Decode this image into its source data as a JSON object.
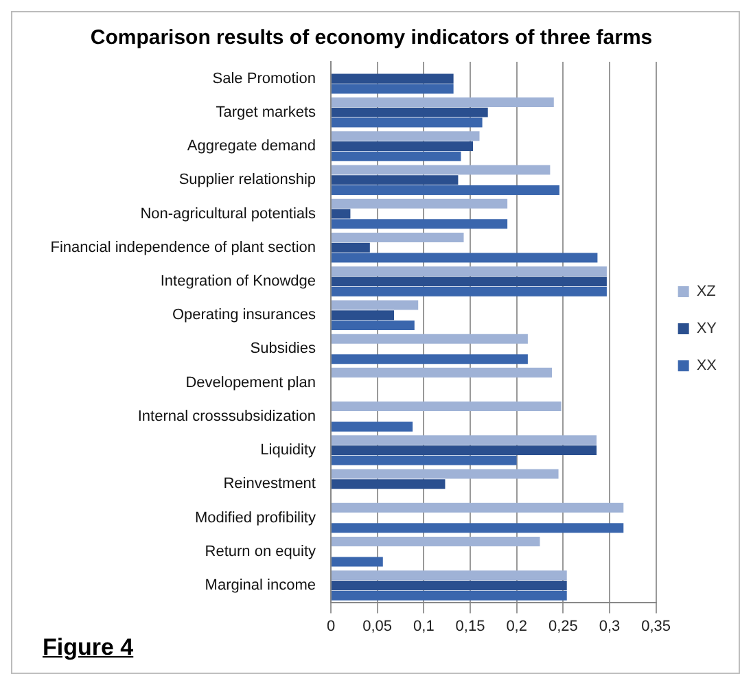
{
  "chart_data": {
    "type": "bar",
    "orientation": "horizontal",
    "title": "Comparison results of economy indicators of three farms",
    "categories": [
      "Sale Promotion",
      "Target markets",
      "Aggregate demand",
      "Supplier relationship",
      "Non-agricultural potentials",
      "Financial independence of plant section",
      "Integration of Knowdge",
      "Operating insurances",
      "Subsidies",
      "Developement plan",
      "Internal crosssubsidization",
      "Liquidity",
      "Reinvestment",
      "Modified profibility",
      "Return on equity",
      "Marginal income"
    ],
    "series": [
      {
        "name": "XZ",
        "color": "#9fb2d6",
        "values": [
          null,
          0.24,
          0.16,
          0.236,
          0.19,
          0.143,
          0.297,
          0.094,
          0.212,
          0.238,
          0.248,
          0.286,
          0.245,
          0.315,
          0.225,
          0.254
        ]
      },
      {
        "name": "XY",
        "color": "#2a4f8f",
        "values": [
          0.132,
          0.169,
          0.153,
          0.137,
          0.021,
          0.042,
          0.297,
          0.068,
          null,
          null,
          null,
          0.286,
          0.123,
          null,
          null,
          0.254
        ]
      },
      {
        "name": "XX",
        "color": "#3a66ad",
        "values": [
          0.132,
          0.163,
          0.14,
          0.246,
          0.19,
          0.287,
          0.297,
          0.09,
          0.212,
          null,
          0.088,
          0.2,
          null,
          0.315,
          0.056,
          0.254
        ]
      }
    ],
    "xlim": [
      0,
      0.35
    ],
    "xticks": [
      0,
      {
        "value": 0.05,
        "label": "0,05"
      },
      {
        "value": 0.1,
        "label": "0,1"
      },
      {
        "value": 0.15,
        "label": "0,15"
      },
      {
        "value": 0.2,
        "label": "0,2"
      },
      {
        "value": 0.25,
        "label": "0,25"
      },
      {
        "value": 0.3,
        "label": "0,3"
      },
      {
        "value": 0.35,
        "label": "0,35"
      }
    ],
    "grid": "x",
    "legend": "right",
    "annotations": [
      "Figure 4"
    ]
  }
}
